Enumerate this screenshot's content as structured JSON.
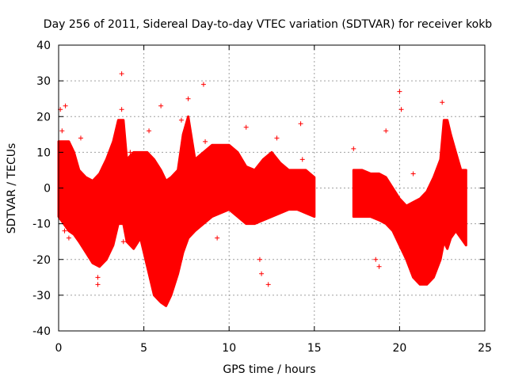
{
  "chart_data": {
    "type": "scatter",
    "title": "Day 256 of 2011, Sidereal Day-to-day VTEC variation (SDTVAR) for receiver kokb",
    "xlabel": "GPS time / hours",
    "ylabel": "SDTVAR / TECUs",
    "xlim": [
      0,
      25
    ],
    "ylim": [
      -40,
      40
    ],
    "x_ticks": [
      0,
      5,
      10,
      15,
      20,
      25
    ],
    "y_ticks": [
      -40,
      -30,
      -20,
      -10,
      0,
      10,
      20,
      30,
      40
    ],
    "grid": true,
    "marker": "+",
    "color": "#ff0000",
    "envelope": {
      "description": "approximate upper and lower bounds of the dense point cloud",
      "x": [
        0.0,
        0.3,
        0.6,
        0.9,
        1.2,
        1.6,
        2.0,
        2.4,
        2.8,
        3.2,
        3.5,
        3.8,
        4.0,
        4.4,
        4.8,
        5.2,
        5.6,
        6.0,
        6.3,
        6.6,
        7.0,
        7.3,
        7.6,
        8.0,
        8.5,
        9.0,
        9.5,
        10.0,
        10.5,
        11.0,
        11.5,
        12.0,
        12.5,
        13.0,
        13.5,
        14.0,
        14.5,
        15.0
      ],
      "upper": [
        13,
        13,
        13,
        10,
        5,
        3,
        2,
        4,
        8,
        13,
        19,
        19,
        8,
        10,
        10,
        10,
        8,
        5,
        2,
        3,
        5,
        15,
        20,
        8,
        10,
        12,
        12,
        12,
        10,
        6,
        5,
        8,
        10,
        7,
        5,
        5,
        5,
        3
      ],
      "lower": [
        -8,
        -10,
        -12,
        -13,
        -15,
        -18,
        -21,
        -22,
        -20,
        -16,
        -10,
        -10,
        -15,
        -17,
        -14,
        -22,
        -30,
        -32,
        -33,
        -30,
        -24,
        -18,
        -14,
        -12,
        -10,
        -8,
        -7,
        -6,
        -8,
        -10,
        -10,
        -9,
        -8,
        -7,
        -6,
        -6,
        -7,
        -8
      ],
      "x2": [
        17.3,
        17.8,
        18.3,
        18.8,
        19.2,
        19.6,
        20.0,
        20.4,
        20.8,
        21.2,
        21.6,
        22.0,
        22.4,
        22.6,
        22.8,
        23.0,
        23.3,
        23.6,
        23.9
      ],
      "upper2": [
        5,
        5,
        4,
        4,
        3,
        0,
        -3,
        -5,
        -4,
        -3,
        -1,
        3,
        8,
        19,
        19,
        15,
        10,
        5,
        5
      ],
      "lower2": [
        -8,
        -8,
        -8,
        -9,
        -10,
        -12,
        -16,
        -20,
        -25,
        -27,
        -27,
        -25,
        -20,
        -15,
        -17,
        -14,
        -12,
        -14,
        -16
      ]
    },
    "outliers": {
      "x": [
        0.1,
        0.2,
        0.35,
        0.4,
        1.3,
        2.3,
        2.3,
        3.7,
        3.7,
        3.8,
        3.8,
        4.2,
        5.3,
        6.0,
        6.1,
        7.2,
        7.6,
        8.5,
        8.6,
        11.0,
        11.8,
        11.9,
        12.3,
        12.8,
        14.2,
        14.3,
        17.3,
        18.6,
        18.8,
        19.2,
        20.0,
        20.1,
        20.8,
        22.5,
        0.6,
        9.3
      ],
      "y": [
        22,
        16,
        -12,
        23,
        14,
        -27,
        -25,
        32,
        22,
        13,
        -15,
        10,
        16,
        23,
        -20,
        19,
        25,
        29,
        13,
        17,
        -20,
        -24,
        -27,
        14,
        18,
        8,
        11,
        -20,
        -22,
        16,
        27,
        22,
        4,
        24,
        -14,
        -14
      ]
    }
  }
}
